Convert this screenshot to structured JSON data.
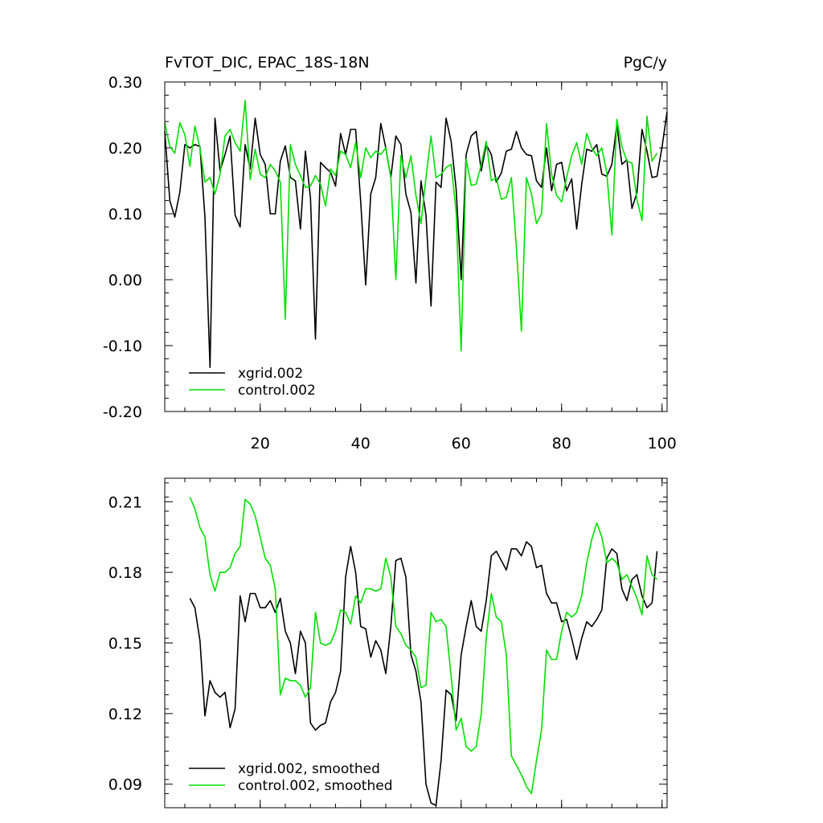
{
  "chart_data": [
    {
      "type": "line",
      "title": "FvTOT_DIC, EPAC_18S-18N",
      "units": "PgC/y",
      "xlabel": "",
      "ylabel": "",
      "xlim": [
        1,
        101
      ],
      "ylim": [
        -0.2,
        0.3
      ],
      "xticks": [
        20,
        40,
        60,
        80,
        100
      ],
      "xtick_labels": [
        "20",
        "40",
        "60",
        "80",
        "100"
      ],
      "yticks": [
        -0.2,
        -0.1,
        0.0,
        0.1,
        0.2,
        0.3
      ],
      "ytick_labels": [
        "-0.20",
        "-0.10",
        "0.00",
        "0.10",
        "0.20",
        "0.30"
      ],
      "legend_position": "bottom-left",
      "grid": false,
      "series": [
        {
          "name": "xgrid.002",
          "color": "#000000",
          "x_start": 1,
          "values": [
            0.225,
            0.12,
            0.095,
            0.133,
            0.205,
            0.2,
            0.205,
            0.202,
            0.095,
            -0.133,
            0.245,
            0.165,
            0.19,
            0.218,
            0.098,
            0.08,
            0.205,
            0.168,
            0.245,
            0.19,
            0.175,
            0.1,
            0.1,
            0.18,
            0.203,
            0.155,
            0.15,
            0.077,
            0.195,
            0.124,
            -0.09,
            0.178,
            0.17,
            0.163,
            0.142,
            0.222,
            0.19,
            0.228,
            0.228,
            0.118,
            -0.008,
            0.13,
            0.155,
            0.237,
            0.2,
            0.155,
            0.218,
            0.205,
            0.13,
            0.102,
            -0.005,
            0.15,
            0.098,
            -0.04,
            0.148,
            0.14,
            0.245,
            0.21,
            0.138,
            0.0,
            0.19,
            0.218,
            0.225,
            0.165,
            0.205,
            0.19,
            0.148,
            0.162,
            0.195,
            0.198,
            0.225,
            0.2,
            0.19,
            0.188,
            0.15,
            0.14,
            0.2,
            0.135,
            0.175,
            0.178,
            0.135,
            0.153,
            0.077,
            0.145,
            0.198,
            0.195,
            0.205,
            0.16,
            0.157,
            0.175,
            0.235,
            0.175,
            0.182,
            0.108,
            0.132,
            0.228,
            0.195,
            0.155,
            0.157,
            0.202,
            0.255
          ]
        },
        {
          "name": "control.002",
          "color": "#00e000",
          "x_start": 1,
          "values": [
            0.238,
            0.202,
            0.192,
            0.238,
            0.22,
            0.172,
            0.233,
            0.2,
            0.148,
            0.155,
            0.13,
            0.16,
            0.218,
            0.228,
            0.208,
            0.195,
            0.272,
            0.152,
            0.198,
            0.16,
            0.155,
            0.175,
            0.165,
            0.148,
            -0.06,
            0.205,
            0.175,
            0.158,
            0.14,
            0.142,
            0.158,
            0.145,
            0.112,
            0.168,
            0.158,
            0.195,
            0.19,
            0.17,
            0.208,
            0.155,
            0.2,
            0.185,
            0.195,
            0.19,
            0.2,
            0.155,
            0.0,
            0.188,
            0.155,
            0.188,
            0.128,
            0.085,
            0.155,
            0.218,
            0.155,
            0.16,
            0.17,
            0.175,
            0.103,
            -0.108,
            0.183,
            0.143,
            0.145,
            0.175,
            0.21,
            0.15,
            0.155,
            0.122,
            0.125,
            0.155,
            0.05,
            -0.078,
            0.155,
            0.13,
            0.085,
            0.1,
            0.237,
            0.16,
            0.128,
            0.118,
            0.155,
            0.188,
            0.208,
            0.175,
            0.222,
            0.2,
            0.188,
            0.2,
            0.162,
            0.068,
            0.243,
            0.202,
            0.18,
            0.177,
            0.122,
            0.09,
            0.248,
            0.18,
            0.192
          ]
        }
      ]
    },
    {
      "type": "line",
      "title": "",
      "xlabel": "",
      "ylabel": "",
      "xlim": [
        1,
        101
      ],
      "ylim": [
        0.08,
        0.22
      ],
      "xticks": [
        20,
        40,
        60,
        80,
        100
      ],
      "xtick_labels": [],
      "yticks": [
        0.09,
        0.12,
        0.15,
        0.18,
        0.21
      ],
      "ytick_labels": [
        "0.09",
        "0.12",
        "0.15",
        "0.18",
        "0.21"
      ],
      "legend_position": "bottom-left",
      "grid": false,
      "series": [
        {
          "name": "xgrid.002, smoothed",
          "color": "#000000",
          "x_start": 6,
          "values": [
            0.169,
            0.165,
            0.151,
            0.119,
            0.134,
            0.129,
            0.127,
            0.129,
            0.114,
            0.122,
            0.17,
            0.159,
            0.171,
            0.171,
            0.165,
            0.165,
            0.168,
            0.163,
            0.169,
            0.155,
            0.15,
            0.137,
            0.155,
            0.15,
            0.116,
            0.113,
            0.115,
            0.116,
            0.125,
            0.129,
            0.138,
            0.178,
            0.191,
            0.18,
            0.157,
            0.156,
            0.144,
            0.151,
            0.147,
            0.137,
            0.157,
            0.185,
            0.186,
            0.178,
            0.145,
            0.138,
            0.125,
            0.09,
            0.082,
            0.081,
            0.1,
            0.13,
            0.128,
            0.117,
            0.145,
            0.157,
            0.168,
            0.157,
            0.155,
            0.168,
            0.187,
            0.189,
            0.185,
            0.181,
            0.19,
            0.19,
            0.187,
            0.193,
            0.191,
            0.182,
            0.183,
            0.171,
            0.167,
            0.167,
            0.159,
            0.16,
            0.152,
            0.143,
            0.152,
            0.159,
            0.157,
            0.16,
            0.164,
            0.186,
            0.19,
            0.188,
            0.173,
            0.168,
            0.177,
            0.179,
            0.17,
            0.165,
            0.167,
            0.189
          ]
        },
        {
          "name": "control.002, smoothed",
          "color": "#00e000",
          "x_start": 6,
          "values": [
            0.212,
            0.207,
            0.199,
            0.195,
            0.179,
            0.172,
            0.18,
            0.18,
            0.182,
            0.188,
            0.191,
            0.211,
            0.209,
            0.204,
            0.195,
            0.186,
            0.183,
            0.173,
            0.128,
            0.135,
            0.134,
            0.134,
            0.132,
            0.127,
            0.131,
            0.163,
            0.15,
            0.149,
            0.15,
            0.155,
            0.164,
            0.163,
            0.158,
            0.17,
            0.167,
            0.173,
            0.173,
            0.172,
            0.173,
            0.186,
            0.178,
            0.157,
            0.154,
            0.149,
            0.147,
            0.144,
            0.131,
            0.132,
            0.163,
            0.159,
            0.16,
            0.157,
            0.136,
            0.113,
            0.118,
            0.106,
            0.104,
            0.106,
            0.12,
            0.152,
            0.171,
            0.161,
            0.159,
            0.145,
            0.102,
            0.098,
            0.094,
            0.089,
            0.086,
            0.1,
            0.113,
            0.147,
            0.143,
            0.143,
            0.155,
            0.163,
            0.161,
            0.163,
            0.17,
            0.184,
            0.194,
            0.201,
            0.195,
            0.184,
            0.186,
            0.184,
            0.177,
            0.179,
            0.174,
            0.169,
            0.162,
            0.187,
            0.179,
            0.177
          ]
        }
      ]
    }
  ]
}
